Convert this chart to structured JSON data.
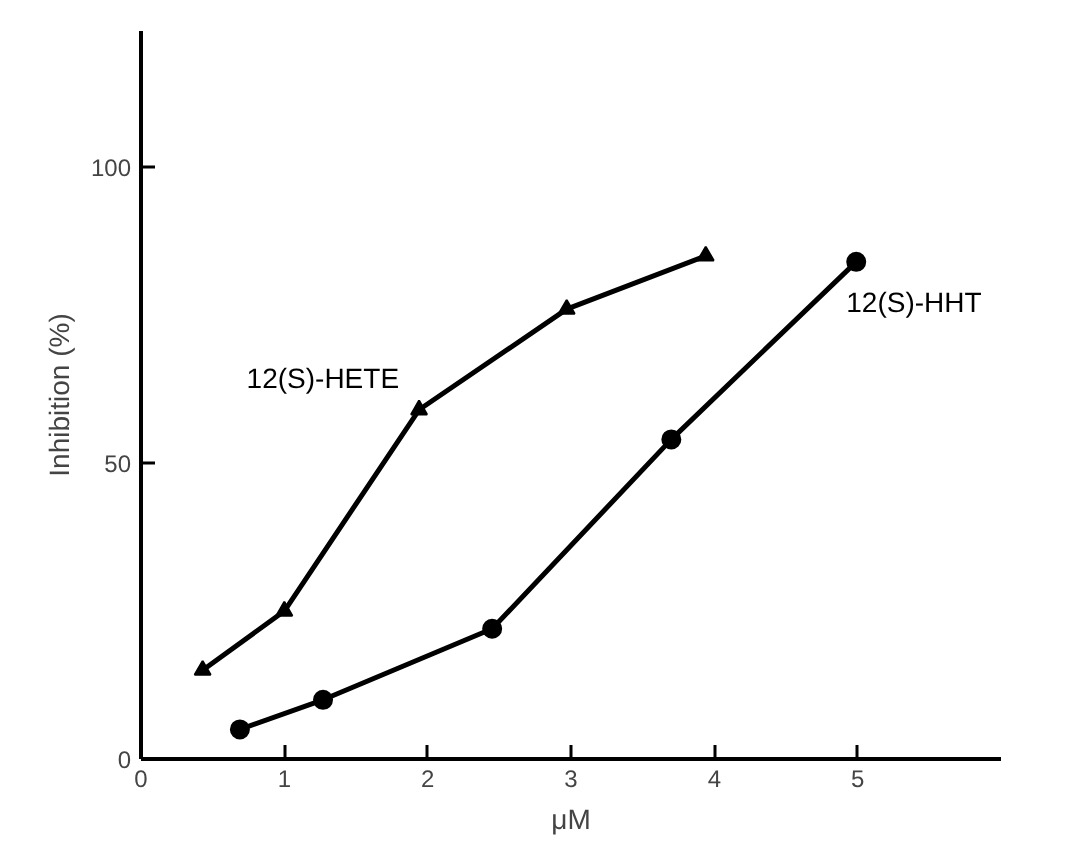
{
  "chart_data": {
    "type": "line",
    "xlabel": "μM",
    "ylabel": "Inhibition (%)",
    "xlim": [
      0,
      6
    ],
    "ylim": [
      0,
      123
    ],
    "xticks": [
      0,
      1,
      2,
      3,
      4,
      5
    ],
    "yticks": [
      0,
      50,
      100
    ],
    "grid": false,
    "series": [
      {
        "name": "12(S)-HETE",
        "color": "#000000",
        "marker": "triangle",
        "x": [
          0.43,
          1.0,
          1.94,
          2.97,
          3.94
        ],
        "values": [
          15,
          25,
          59,
          76,
          85
        ]
      },
      {
        "name": "12(S)-HHT",
        "color": "#000000",
        "marker": "circle",
        "x": [
          0.69,
          1.27,
          2.45,
          3.7,
          4.99
        ],
        "values": [
          5,
          10,
          22,
          54,
          84
        ]
      }
    ]
  }
}
